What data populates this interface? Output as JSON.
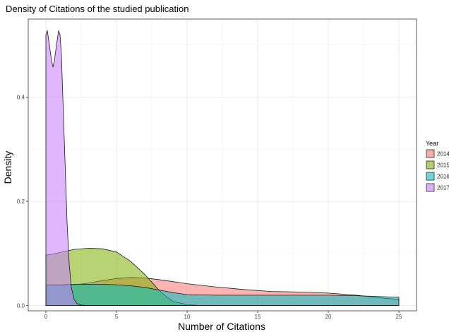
{
  "chart_data": {
    "type": "area",
    "title": "Density of Citations of the studied publication",
    "xlabel": "Number of Citations",
    "ylabel": "Density",
    "xlim": [
      -1.25,
      26.25
    ],
    "ylim": [
      -0.01,
      0.55
    ],
    "xticks": [
      0,
      5,
      10,
      15,
      20,
      25
    ],
    "yticks": [
      0.0,
      0.2,
      0.4
    ],
    "ytick_labels": [
      "0.0",
      "0.2",
      "0.4"
    ],
    "grid": true,
    "legend": {
      "title": "Year",
      "placement": "right"
    },
    "series": [
      {
        "name": "2014",
        "color": "#F8766D",
        "x": [
          0,
          1,
          2,
          3,
          4,
          5,
          6,
          7,
          8,
          9,
          10,
          12,
          14,
          16,
          18,
          20,
          22,
          24,
          25
        ],
        "y": [
          0.038,
          0.038,
          0.04,
          0.043,
          0.048,
          0.052,
          0.054,
          0.053,
          0.05,
          0.046,
          0.042,
          0.036,
          0.031,
          0.027,
          0.026,
          0.024,
          0.02,
          0.014,
          0.012
        ]
      },
      {
        "name": "2015",
        "color": "#7CAE00",
        "x": [
          0,
          0.5,
          1,
          2,
          3,
          4,
          5,
          6,
          7,
          7.5,
          8,
          8.5,
          9,
          10,
          11,
          25
        ],
        "y": [
          0.097,
          0.099,
          0.102,
          0.108,
          0.11,
          0.109,
          0.103,
          0.085,
          0.06,
          0.045,
          0.03,
          0.018,
          0.008,
          0.002,
          0.0,
          0.0
        ]
      },
      {
        "name": "2016",
        "color": "#00BFC4",
        "x": [
          0,
          1,
          2,
          3,
          4,
          5,
          6,
          7,
          8,
          9,
          10,
          12,
          14,
          16,
          18,
          20,
          22,
          24,
          25
        ],
        "y": [
          0.04,
          0.04,
          0.041,
          0.041,
          0.041,
          0.04,
          0.038,
          0.035,
          0.03,
          0.025,
          0.021,
          0.02,
          0.02,
          0.02,
          0.02,
          0.02,
          0.019,
          0.017,
          0.016
        ]
      },
      {
        "name": "2017",
        "color": "#C77CFF",
        "x": [
          0,
          0.1,
          0.25,
          0.4,
          0.5,
          0.6,
          0.75,
          0.9,
          1.0,
          1.1,
          1.2,
          1.35,
          1.5,
          1.65,
          1.8,
          2.0,
          2.2,
          2.5,
          3.0,
          25
        ],
        "y": [
          0.52,
          0.528,
          0.5,
          0.47,
          0.458,
          0.47,
          0.5,
          0.528,
          0.52,
          0.48,
          0.4,
          0.28,
          0.16,
          0.08,
          0.035,
          0.012,
          0.004,
          0.001,
          0.0,
          0.0
        ]
      }
    ]
  }
}
